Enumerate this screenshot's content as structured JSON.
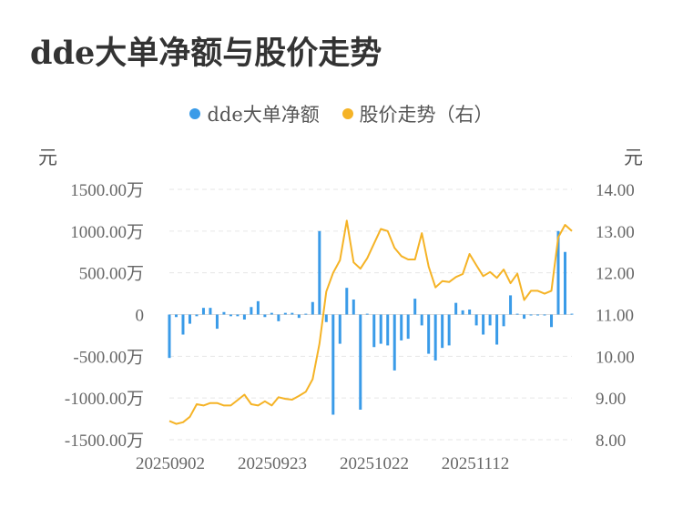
{
  "title": "dde大单净额与股价走势",
  "legend": [
    {
      "name": "dde大单净额",
      "color": "#3a9be8"
    },
    {
      "name": "股价走势（右）",
      "color": "#f5b326"
    }
  ],
  "units": {
    "left": "元",
    "right": "元"
  },
  "chart_data": {
    "type": "bar+line",
    "x_tick_labels": [
      "20250902",
      "20250923",
      "20251022",
      "20251112"
    ],
    "left_axis": {
      "ticks": [
        1500,
        1000,
        500,
        0,
        -500,
        -1000,
        -1500
      ],
      "tick_labels": [
        "1500.00万",
        "1000.00万",
        "500.00万",
        "0",
        "-500.00万",
        "-1000.00万",
        "-1500.00万"
      ],
      "ylim": [
        -1500,
        1500
      ]
    },
    "right_axis": {
      "ticks": [
        14,
        13,
        12,
        11,
        10,
        9,
        8
      ],
      "tick_labels": [
        "14.00",
        "13.00",
        "12.00",
        "11.00",
        "10.00",
        "9.00",
        "8.00"
      ],
      "ylim": [
        8,
        14
      ]
    },
    "grid": true,
    "series": [
      {
        "name": "dde大单净额",
        "type": "bar",
        "axis": "left",
        "color": "#3a9be8",
        "values": [
          -520,
          -30,
          -240,
          -110,
          -20,
          80,
          80,
          -170,
          30,
          -20,
          -20,
          -60,
          90,
          160,
          -30,
          20,
          -80,
          20,
          20,
          -40,
          10,
          150,
          1000,
          -90,
          -1200,
          -350,
          320,
          180,
          -1140,
          10,
          -390,
          -350,
          -370,
          -670,
          -310,
          -290,
          190,
          -130,
          -470,
          -550,
          -400,
          -370,
          140,
          50,
          60,
          -130,
          -240,
          -130,
          -360,
          -140,
          230,
          10,
          -50,
          0,
          0,
          -10,
          -150,
          1000,
          750,
          10
        ]
      },
      {
        "name": "股价走势（右）",
        "type": "line",
        "axis": "right",
        "color": "#f5b326",
        "values": [
          8.45,
          8.38,
          8.42,
          8.55,
          8.85,
          8.82,
          8.88,
          8.88,
          8.82,
          8.82,
          8.95,
          9.08,
          8.85,
          8.82,
          8.92,
          8.82,
          9.02,
          8.98,
          8.96,
          9.05,
          9.15,
          9.45,
          10.3,
          11.55,
          12.0,
          12.3,
          13.25,
          12.25,
          12.1,
          12.35,
          12.7,
          13.05,
          13.0,
          12.6,
          12.4,
          12.32,
          12.32,
          12.95,
          12.15,
          11.65,
          11.8,
          11.78,
          11.9,
          11.97,
          12.45,
          12.18,
          11.92,
          12.02,
          11.88,
          12.08,
          11.75,
          11.98,
          11.35,
          11.57,
          11.57,
          11.5,
          11.57,
          12.85,
          13.15,
          13.0
        ]
      }
    ]
  }
}
